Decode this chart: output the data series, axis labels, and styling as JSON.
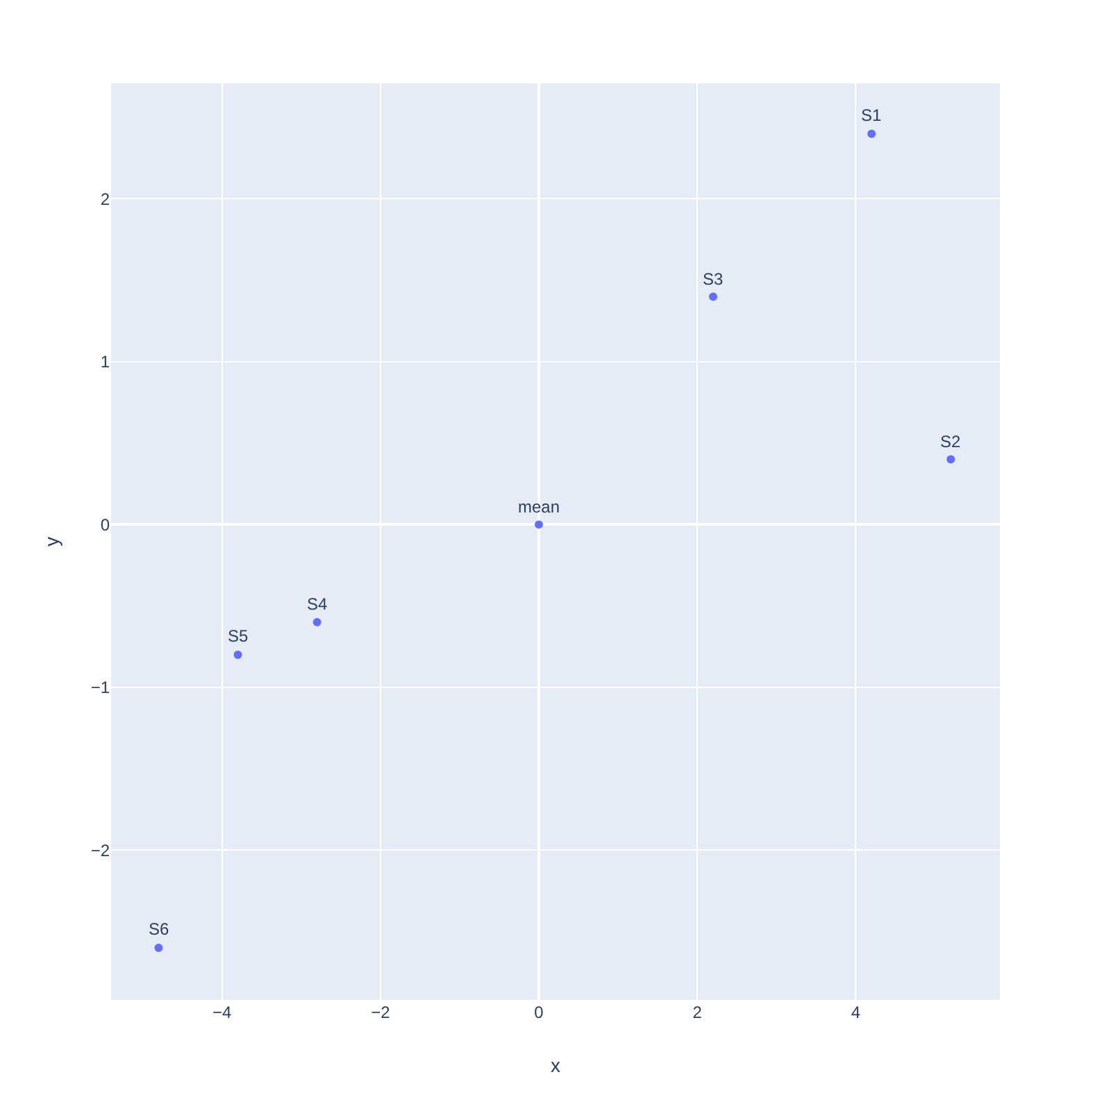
{
  "chart_data": {
    "type": "scatter",
    "xlabel": "x",
    "ylabel": "y",
    "x": [
      4.2,
      5.2,
      2.2,
      0,
      -2.8,
      -3.8,
      -4.8
    ],
    "values": [
      2.4,
      0.4,
      1.4,
      0,
      -0.6,
      -0.8,
      -2.6
    ],
    "color": "#636efa",
    "marker": "circle",
    "annotations": [
      {
        "text": "S1",
        "x": 4.2,
        "y": 2.4
      },
      {
        "text": "S2",
        "x": 5.2,
        "y": 0.4
      },
      {
        "text": "S3",
        "x": 2.2,
        "y": 1.4
      },
      {
        "text": "mean",
        "x": 0,
        "y": 0
      },
      {
        "text": "S4",
        "x": -2.8,
        "y": -0.6
      },
      {
        "text": "S5",
        "x": -3.8,
        "y": -0.8
      },
      {
        "text": "S6",
        "x": -4.8,
        "y": -2.6
      }
    ],
    "xlim": [
      -5.4,
      5.82
    ],
    "ylim": [
      -2.92,
      2.71
    ],
    "xticks": [
      -4,
      -2,
      0,
      2,
      4
    ],
    "yticks": [
      -2,
      -1,
      0,
      1,
      2
    ],
    "grid": true
  }
}
